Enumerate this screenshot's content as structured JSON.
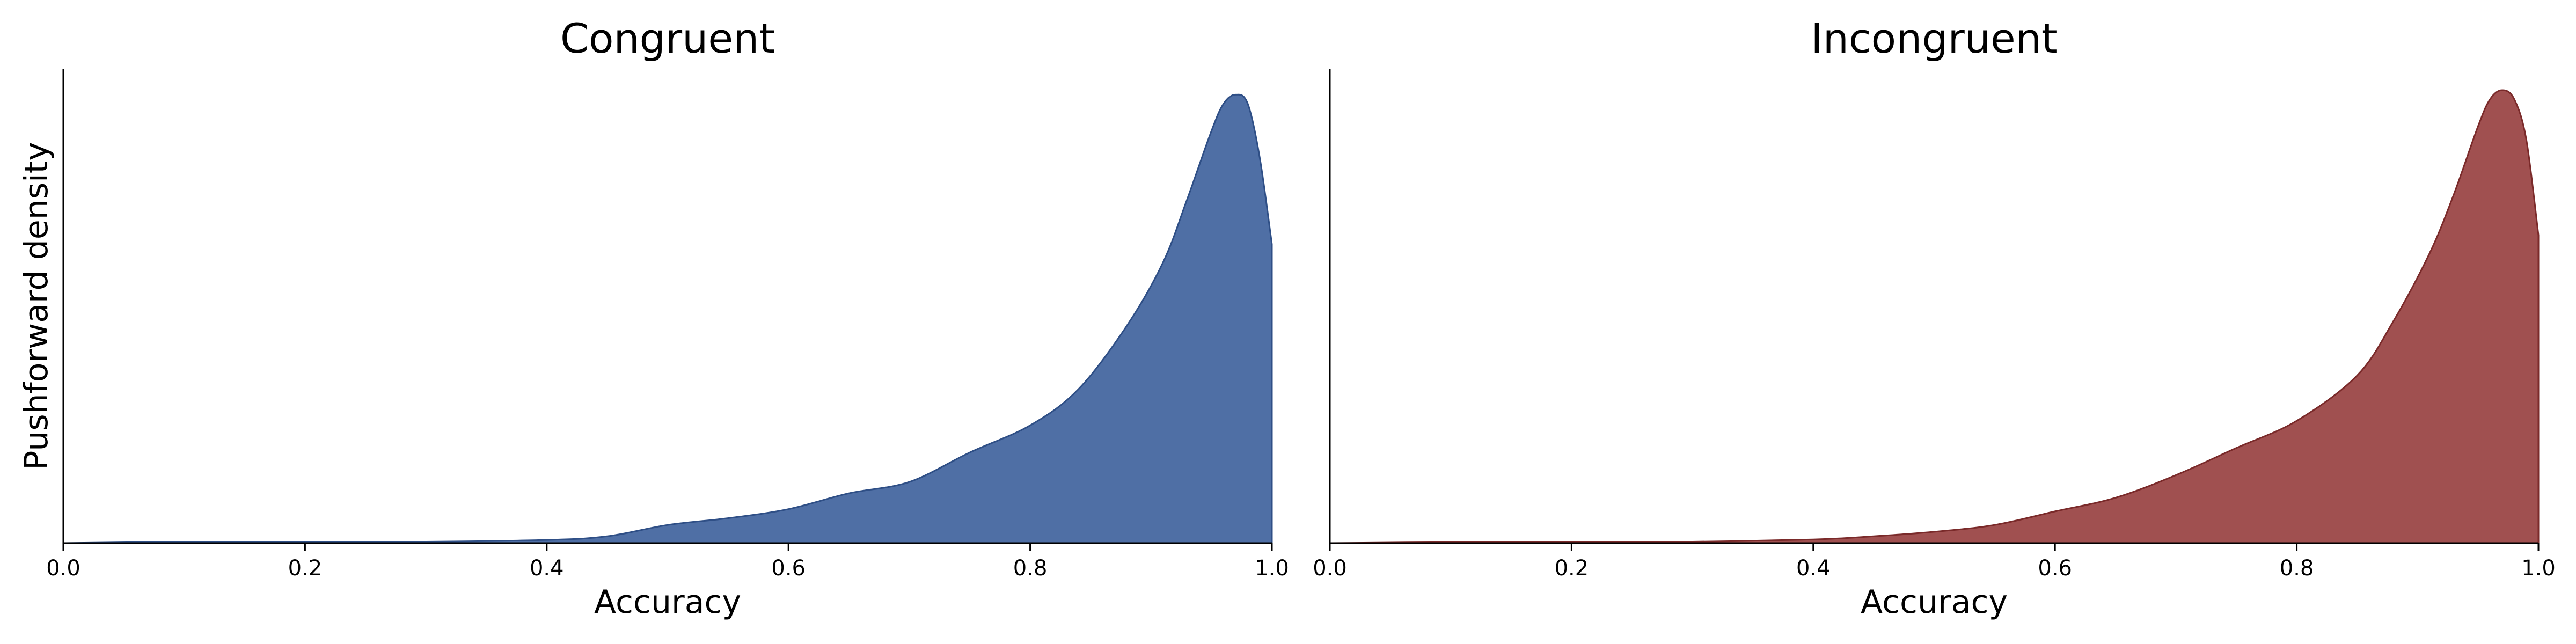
{
  "chart_data": [
    {
      "type": "area",
      "title": "Congruent",
      "xlabel": "Accuracy",
      "ylabel": "Pushforward density",
      "xlim": [
        0.0,
        1.0
      ],
      "ylim": [
        0,
        1.0
      ],
      "xticks": [
        "0.0",
        "0.2",
        "0.4",
        "0.6",
        "0.8",
        "1.0"
      ],
      "grid": false,
      "fill_color": "#4f6fa5",
      "edge_color": "#2f4f86",
      "x": [
        0.0,
        0.1,
        0.2,
        0.3,
        0.4,
        0.45,
        0.5,
        0.55,
        0.6,
        0.65,
        0.7,
        0.75,
        0.8,
        0.84,
        0.88,
        0.91,
        0.93,
        0.95,
        0.96,
        0.97,
        0.98,
        0.99,
        1.0
      ],
      "y": [
        0.0,
        0.003,
        0.002,
        0.003,
        0.007,
        0.015,
        0.04,
        0.055,
        0.075,
        0.11,
        0.135,
        0.2,
        0.26,
        0.34,
        0.48,
        0.62,
        0.76,
        0.91,
        0.97,
        0.99,
        0.97,
        0.85,
        0.66
      ]
    },
    {
      "type": "area",
      "title": "Incongruent",
      "xlabel": "Accuracy",
      "ylabel": "",
      "xlim": [
        0.0,
        1.0
      ],
      "ylim": [
        0,
        1.0
      ],
      "xticks": [
        "0.0",
        "0.2",
        "0.4",
        "0.6",
        "0.8",
        "1.0"
      ],
      "grid": false,
      "fill_color": "#a05050",
      "edge_color": "#7a2a2a",
      "x": [
        0.0,
        0.1,
        0.2,
        0.3,
        0.4,
        0.45,
        0.5,
        0.55,
        0.6,
        0.65,
        0.7,
        0.75,
        0.8,
        0.85,
        0.88,
        0.91,
        0.93,
        0.95,
        0.96,
        0.97,
        0.98,
        0.99,
        1.0
      ],
      "y": [
        0.0,
        0.002,
        0.002,
        0.003,
        0.008,
        0.015,
        0.025,
        0.04,
        0.07,
        0.1,
        0.15,
        0.21,
        0.27,
        0.37,
        0.49,
        0.64,
        0.77,
        0.92,
        0.98,
        1.0,
        0.98,
        0.89,
        0.68
      ]
    }
  ]
}
